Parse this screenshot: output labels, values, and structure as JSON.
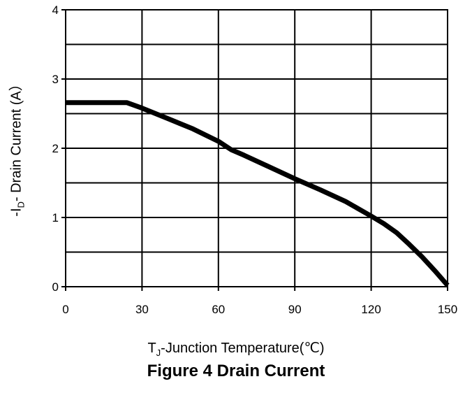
{
  "chart_data": {
    "type": "line",
    "title": "Figure 4 Drain Current",
    "ylabel": {
      "prefix": "-I",
      "sub": "D",
      "suffix": "- Drain Current (A）"
    },
    "xlabel": {
      "prefix": "T",
      "sub": "J",
      "suffix": "-Junction Temperature(℃)"
    },
    "xlim": [
      0,
      150
    ],
    "ylim": [
      0,
      4
    ],
    "xticks": [
      "0",
      "30",
      "60",
      "90",
      "120",
      "150"
    ],
    "yticks": [
      "0",
      "1",
      "2",
      "3",
      "4"
    ],
    "grid": true,
    "series": [
      {
        "x": [
          0,
          24,
          30,
          40,
          50,
          60,
          65,
          70,
          80,
          90,
          100,
          110,
          120,
          125,
          130,
          135,
          140,
          145,
          150
        ],
        "y": [
          2.66,
          2.66,
          2.58,
          2.43,
          2.28,
          2.1,
          1.98,
          1.9,
          1.73,
          1.56,
          1.4,
          1.23,
          1.02,
          0.91,
          0.78,
          0.61,
          0.43,
          0.23,
          0.02
        ]
      }
    ],
    "line_color": "#000000"
  }
}
